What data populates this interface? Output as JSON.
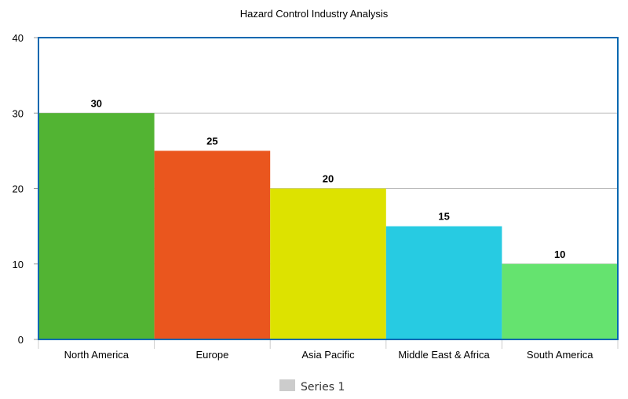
{
  "chart_data": {
    "type": "bar",
    "title": "Hazard Control Industry Analysis",
    "categories": [
      "North America",
      "Europe",
      "Asia Pacific",
      "Middle East & Africa",
      "South America"
    ],
    "series": [
      {
        "name": "Series 1",
        "values": [
          30,
          25,
          20,
          15,
          10
        ]
      }
    ],
    "bar_colors": [
      "#52b433",
      "#ea561e",
      "#dde200",
      "#27cbe2",
      "#65e36f"
    ],
    "legend_swatch_color": "#cccccc",
    "plot_border_color": "#0068b0",
    "grid_color": "#bbbbbb",
    "ylim": [
      0,
      40
    ],
    "yticks": [
      0,
      10,
      20,
      30,
      40
    ],
    "grid": true,
    "legend_position": "bottom"
  }
}
